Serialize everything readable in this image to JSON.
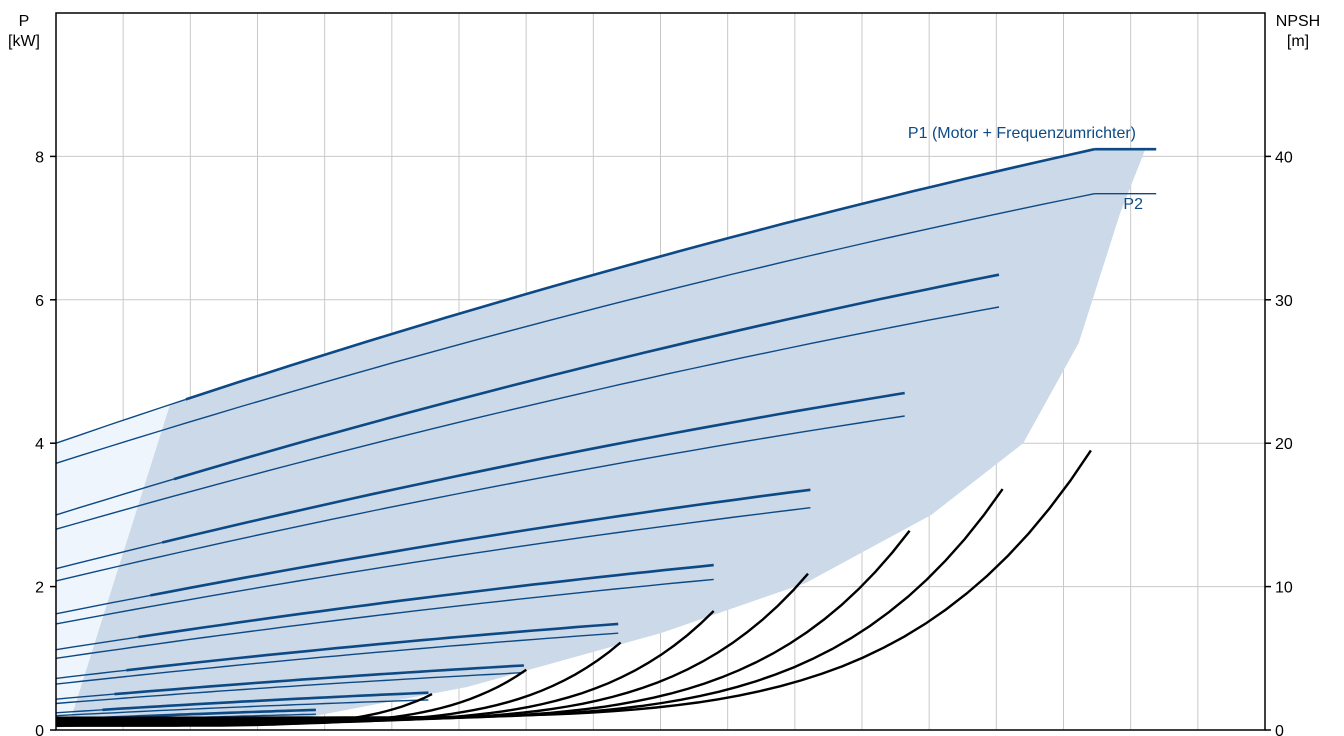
{
  "chart_data": {
    "type": "line",
    "left_axis": {
      "title_line1": "P",
      "title_line2": "[kW]",
      "ticks": [
        "0",
        "2",
        "4",
        "6",
        "8"
      ],
      "ylim": [
        0,
        10
      ]
    },
    "right_axis": {
      "title_line1": "NPSH",
      "title_line2": "[m]",
      "ticks": [
        "0",
        "10",
        "20",
        "30",
        "40"
      ],
      "ylim": [
        0,
        50
      ]
    },
    "x_gridlines": 18,
    "grid": true,
    "colors": {
      "power": "#0d4a85",
      "envelope": "#cbd9e8",
      "envelope_light": "#eef5fc",
      "npsh": "#000000",
      "grid": "#c9c9c9"
    },
    "labels": {
      "p1": "P1 (Motor + Frequenzumrichter)",
      "p2": "P2"
    },
    "p1_curves": [
      {
        "ys": 4.0,
        "ye": 8.1
      },
      {
        "ys": 3.0,
        "ye": 6.35
      },
      {
        "ys": 2.25,
        "ye": 4.7
      },
      {
        "ys": 1.62,
        "ye": 3.35
      },
      {
        "ys": 1.12,
        "ye": 2.3
      },
      {
        "ys": 0.72,
        "ye": 1.48
      },
      {
        "ys": 0.43,
        "ye": 0.9
      },
      {
        "ys": 0.24,
        "ye": 0.52
      },
      {
        "ys": 0.14,
        "ye": 0.28
      },
      {
        "ys": 0.07,
        "ye": 0.14
      }
    ],
    "p2_curves": [
      {
        "ys": 3.72,
        "ye": 7.48
      },
      {
        "ys": 2.8,
        "ye": 5.9
      },
      {
        "ys": 2.08,
        "ye": 4.38
      },
      {
        "ys": 1.48,
        "ye": 3.1
      },
      {
        "ys": 1.0,
        "ye": 2.1
      },
      {
        "ys": 0.64,
        "ye": 1.35
      },
      {
        "ys": 0.37,
        "ye": 0.8
      },
      {
        "ys": 0.2,
        "ye": 0.42
      },
      {
        "ys": 0.11,
        "ye": 0.22
      },
      {
        "ys": 0.05,
        "ye": 0.1
      }
    ],
    "npsh_curves": [
      {
        "x_end": 0.311,
        "y_end": 2.5
      },
      {
        "x_end": 0.389,
        "y_end": 4.2
      },
      {
        "x_end": 0.467,
        "y_end": 6.1
      },
      {
        "x_end": 0.544,
        "y_end": 8.3
      },
      {
        "x_end": 0.622,
        "y_end": 10.9
      },
      {
        "x_end": 0.706,
        "y_end": 13.9
      },
      {
        "x_end": 0.783,
        "y_end": 16.8
      },
      {
        "x_end": 0.856,
        "y_end": 19.5
      }
    ]
  }
}
